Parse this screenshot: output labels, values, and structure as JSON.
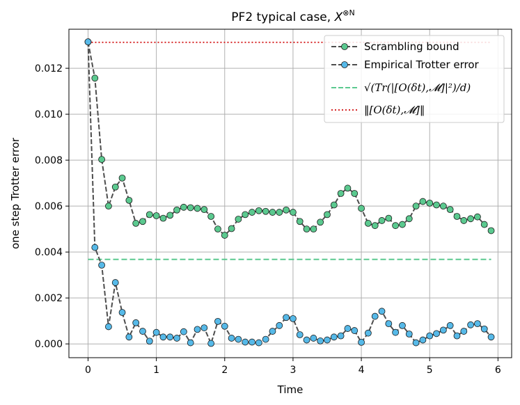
{
  "chart_data": {
    "type": "line",
    "title": "PF2 typical case, X^{⊗N}",
    "title_main": "PF2 typical case, ",
    "title_sym": "X",
    "title_sup": "⊗N",
    "xlabel": "Time",
    "ylabel": "one step Trotter error",
    "xlim": [
      -0.28,
      6.2
    ],
    "ylim": [
      -0.0006,
      0.0137
    ],
    "xticks": [
      0,
      1,
      2,
      3,
      4,
      5,
      6
    ],
    "xtick_labels": [
      "0",
      "1",
      "2",
      "3",
      "4",
      "5",
      "6"
    ],
    "yticks": [
      0.0,
      0.002,
      0.004,
      0.006,
      0.008,
      0.01,
      0.012
    ],
    "ytick_labels": [
      "0.000",
      "0.002",
      "0.004",
      "0.006",
      "0.008",
      "0.010",
      "0.012"
    ],
    "grid": true,
    "legend_position": "top-right",
    "x": [
      0.0,
      0.1,
      0.2,
      0.3,
      0.4,
      0.5,
      0.6,
      0.7,
      0.8,
      0.9,
      1.0,
      1.1,
      1.2,
      1.3,
      1.4,
      1.5,
      1.6,
      1.7,
      1.8,
      1.9,
      2.0,
      2.1,
      2.2,
      2.3,
      2.4,
      2.5,
      2.6,
      2.7,
      2.8,
      2.9,
      3.0,
      3.1,
      3.2,
      3.3,
      3.4,
      3.5,
      3.6,
      3.7,
      3.8,
      3.9,
      4.0,
      4.1,
      4.2,
      4.3,
      4.4,
      4.5,
      4.6,
      4.7,
      4.8,
      4.9,
      5.0,
      5.1,
      5.2,
      5.3,
      5.4,
      5.5,
      5.6,
      5.7,
      5.8,
      5.9
    ],
    "series": [
      {
        "name": "Scrambling bound",
        "style": "dashed-marker",
        "line_color": "#4d4d4d",
        "marker_color": "#5bc98f",
        "values": [
          0.01315,
          0.01157,
          0.00803,
          0.006,
          0.00683,
          0.00722,
          0.00625,
          0.00525,
          0.00533,
          0.00563,
          0.00558,
          0.00547,
          0.0056,
          0.00583,
          0.00595,
          0.00593,
          0.0059,
          0.00585,
          0.00555,
          0.005,
          0.00473,
          0.00502,
          0.00543,
          0.00563,
          0.00573,
          0.0058,
          0.00577,
          0.00573,
          0.00573,
          0.00583,
          0.00573,
          0.00533,
          0.005,
          0.005,
          0.0053,
          0.00563,
          0.00605,
          0.00655,
          0.00678,
          0.00655,
          0.0059,
          0.00525,
          0.00515,
          0.00537,
          0.00547,
          0.00515,
          0.0052,
          0.00545,
          0.006,
          0.0062,
          0.00613,
          0.00605,
          0.006,
          0.00585,
          0.00555,
          0.00537,
          0.00545,
          0.00553,
          0.0052,
          0.00493
        ]
      },
      {
        "name": "Empirical Trotter error",
        "style": "dashed-marker",
        "line_color": "#4d4d4d",
        "marker_color": "#56b9e8",
        "values": [
          0.01315,
          0.0042,
          0.00343,
          0.00075,
          0.00267,
          0.00137,
          0.0003,
          0.00092,
          0.00055,
          0.00012,
          0.0005,
          0.0003,
          0.0003,
          0.00025,
          0.00053,
          5e-05,
          0.00063,
          0.0007,
          2e-05,
          0.00098,
          0.00077,
          0.00025,
          0.0002,
          8e-05,
          8e-05,
          5e-05,
          0.0002,
          0.00055,
          0.0008,
          0.00115,
          0.0011,
          0.0004,
          0.00017,
          0.00025,
          0.00013,
          0.00017,
          0.0003,
          0.00035,
          0.00067,
          0.00058,
          7e-05,
          0.00047,
          0.0012,
          0.00142,
          0.00088,
          0.0005,
          0.0008,
          0.00043,
          5e-05,
          0.00017,
          0.00035,
          0.00045,
          0.0006,
          0.0008,
          0.00035,
          0.00055,
          0.00083,
          0.00088,
          0.00065,
          0.0003
        ]
      },
      {
        "name": "√(Tr(|[O(δt),𝓜]|²)/d)",
        "style": "dashed",
        "color": "#5bc98f",
        "x_range": [
          0.0,
          5.9
        ],
        "value": 0.00368
      },
      {
        "name": "‖[O(δt),𝓜]‖",
        "style": "dotted",
        "color": "#d62728",
        "x_range": [
          0.0,
          5.9
        ],
        "value": 0.01313
      }
    ],
    "legend": [
      "Scrambling bound",
      "Empirical Trotter error",
      "√(Tr(|[O(δt),𝓜]|²)/d)",
      "‖[O(δt),𝓜]‖"
    ]
  }
}
